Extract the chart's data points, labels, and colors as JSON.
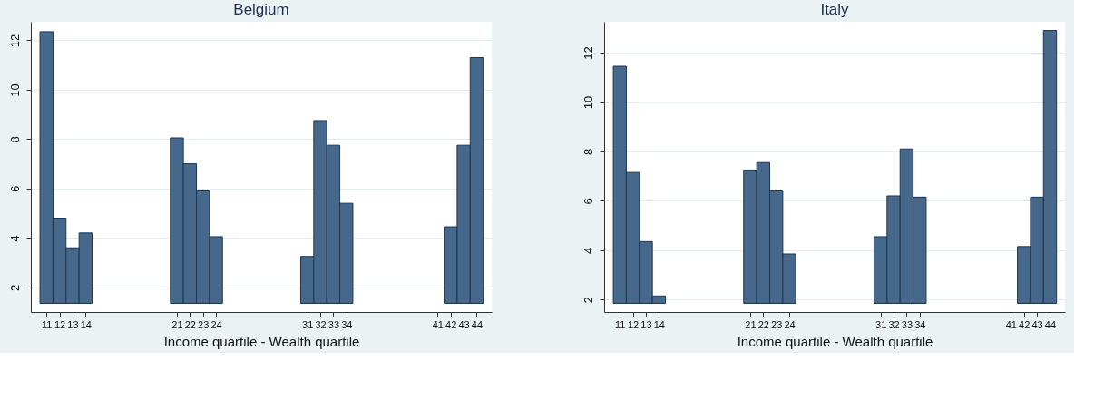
{
  "chart_data": [
    {
      "type": "bar",
      "title": "Belgium",
      "xlabel": "Income quartile - Wealth quartile",
      "x": [
        11,
        12,
        13,
        14,
        21,
        22,
        23,
        24,
        31,
        32,
        33,
        34,
        42,
        43,
        44
      ],
      "base": [
        1.35,
        1.35,
        1.35,
        1.35,
        1.35,
        1.35,
        1.35,
        1.35,
        1.35,
        1.35,
        1.35,
        1.35,
        1.35,
        1.35,
        1.35
      ],
      "values": [
        11.0,
        3.45,
        2.25,
        2.85,
        6.7,
        5.65,
        4.55,
        2.7,
        1.9,
        7.4,
        6.4,
        4.05,
        3.1,
        6.4,
        9.95
      ],
      "color": "#46688a",
      "xlim": [
        9.8,
        45.15
      ],
      "xticks": [
        11,
        12,
        13,
        14,
        21,
        22,
        23,
        24,
        31,
        32,
        33,
        34,
        41,
        42,
        43,
        44
      ],
      "ylim": [
        1.0,
        12.75
      ],
      "yticks": [
        2,
        4,
        6,
        8,
        10,
        12
      ],
      "grid": "y"
    },
    {
      "type": "bar",
      "title": "Italy",
      "xlabel": "Income quartile - Wealth quartile",
      "x": [
        11,
        12,
        13,
        14,
        21,
        22,
        23,
        24,
        31,
        32,
        33,
        34,
        42,
        43,
        44
      ],
      "base": [
        1.85,
        1.85,
        1.85,
        1.85,
        1.85,
        1.85,
        1.85,
        1.85,
        1.85,
        1.85,
        1.85,
        1.85,
        1.85,
        1.85,
        1.85
      ],
      "values": [
        9.6,
        5.3,
        2.5,
        0.3,
        5.4,
        5.7,
        4.55,
        2.0,
        2.7,
        4.35,
        6.25,
        4.3,
        2.3,
        4.3,
        11.05
      ],
      "color": "#46688a",
      "xlim": [
        9.8,
        45.15
      ],
      "xticks": [
        11,
        12,
        13,
        14,
        21,
        22,
        23,
        24,
        31,
        32,
        33,
        34,
        41,
        42,
        43,
        44
      ],
      "ylim": [
        1.5,
        13.25
      ],
      "yticks": [
        2,
        4,
        6,
        8,
        10,
        12
      ],
      "grid": "y"
    }
  ]
}
